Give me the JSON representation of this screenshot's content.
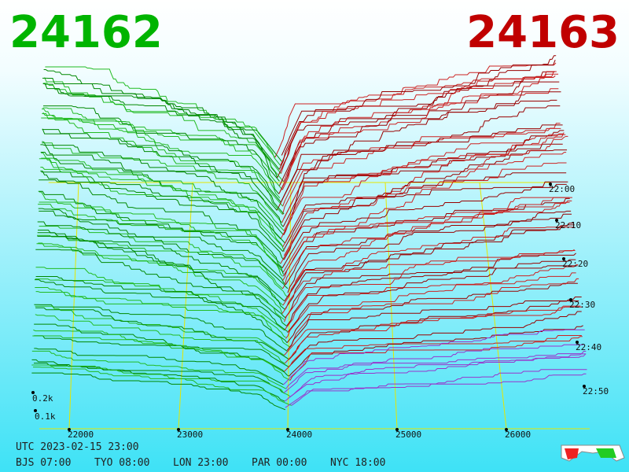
{
  "header": {
    "bid": "24162",
    "ask": "24163"
  },
  "price_axis": {
    "labels": [
      "22000",
      "23000",
      "24000",
      "25000",
      "26000"
    ]
  },
  "time_axis": {
    "labels": [
      "22:00",
      "22:10",
      "22:20",
      "22:30",
      "22:40",
      "22:50"
    ]
  },
  "depth_axis": {
    "labels": [
      "0.2k",
      "0.1k"
    ]
  },
  "footer": {
    "utc": "UTC 2023-02-15 23:00",
    "zones": [
      "BJS 07:00",
      "TYO 08:00",
      "LON 23:00",
      "PAR 00:00",
      "NYC 18:00"
    ]
  }
}
